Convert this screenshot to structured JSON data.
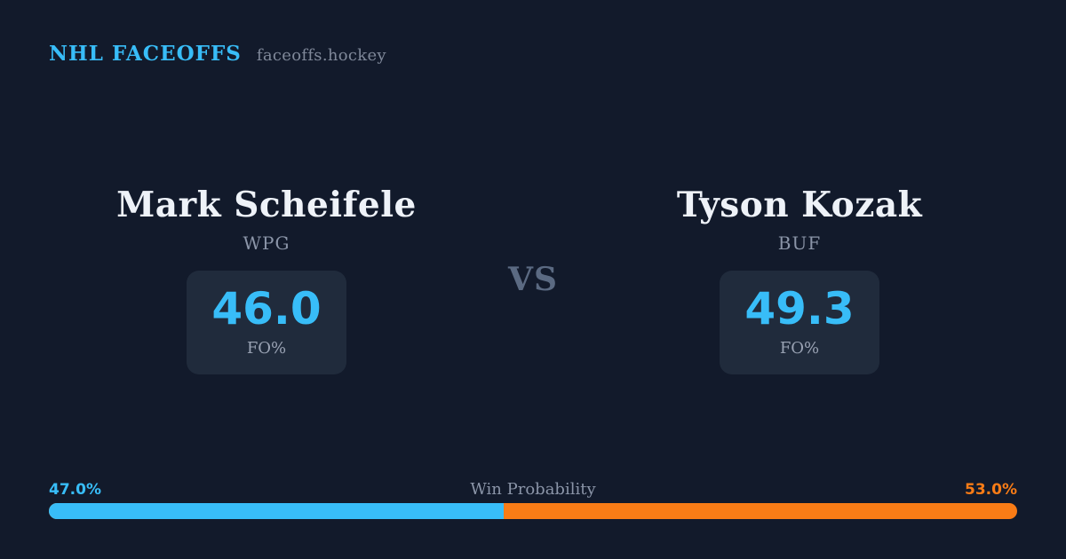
{
  "header": {
    "brand": "NHL FACEOFFS",
    "site": "faceoffs.hockey"
  },
  "matchup": {
    "vs_label": "VS",
    "players": [
      {
        "name": "Mark Scheifele",
        "team": "WPG",
        "stat_value": "46.0",
        "stat_label": "FO%"
      },
      {
        "name": "Tyson Kozak",
        "team": "BUF",
        "stat_value": "49.3",
        "stat_label": "FO%"
      }
    ]
  },
  "win_probability": {
    "title": "Win Probability",
    "left_pct_label": "47.0%",
    "right_pct_label": "53.0%",
    "left_value": 47.0,
    "right_value": 53.0
  },
  "colors": {
    "background": "#121a2b",
    "card": "#202b3c",
    "accent_blue": "#38bdf8",
    "accent_orange": "#f97c16",
    "text_primary": "#eef2f8",
    "text_muted": "#8b95a8",
    "vs_color": "#5b6a82"
  }
}
